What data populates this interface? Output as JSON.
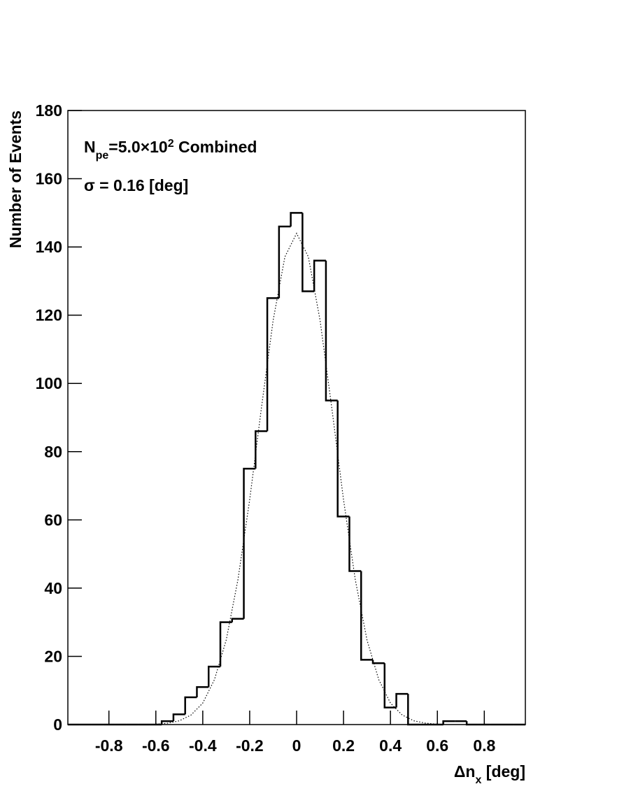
{
  "chart_data": {
    "type": "histogram",
    "ylabel": "Number of Events",
    "xlabel": [
      {
        "text": "Δn"
      },
      {
        "text": "x",
        "sub": true
      },
      {
        "text": "  [deg]"
      }
    ],
    "annotations": [
      [
        {
          "text": "N"
        },
        {
          "text": "pe",
          "sub": true
        },
        {
          "text": "=5.0×10"
        },
        {
          "text": "2",
          "sup": true
        },
        {
          "text": " Combined"
        }
      ],
      [
        {
          "text": "σ = 0.16 [deg]"
        }
      ]
    ],
    "bins": [
      -0.975,
      -0.925,
      -0.875,
      -0.825,
      -0.775,
      -0.725,
      -0.675,
      -0.625,
      -0.575,
      -0.525,
      -0.475,
      -0.425,
      -0.375,
      -0.325,
      -0.275,
      -0.225,
      -0.175,
      -0.125,
      -0.075,
      -0.025,
      0.025,
      0.075,
      0.125,
      0.175,
      0.225,
      0.275,
      0.325,
      0.375,
      0.425,
      0.475,
      0.525,
      0.575,
      0.625,
      0.675,
      0.725,
      0.775,
      0.825,
      0.875,
      0.925,
      0.975
    ],
    "counts": [
      0,
      0,
      0,
      0,
      0,
      0,
      0,
      0,
      1,
      3,
      8,
      11,
      17,
      30,
      31,
      75,
      86,
      125,
      146,
      150,
      127,
      136,
      95,
      61,
      45,
      19,
      18,
      5,
      9,
      0,
      0,
      0,
      1,
      1,
      0,
      0,
      0,
      0,
      0
    ],
    "color": "#000000",
    "fit": {
      "color": "#000000",
      "style": "dotted",
      "x": [
        -0.6,
        -0.55,
        -0.5,
        -0.45,
        -0.4,
        -0.35,
        -0.3,
        -0.25,
        -0.2,
        -0.15,
        -0.1,
        -0.05,
        0,
        0.05,
        0.1,
        0.15,
        0.2,
        0.25,
        0.3,
        0.35,
        0.4,
        0.45,
        0.5,
        0.55,
        0.6
      ],
      "values": [
        0.1,
        0.4,
        1.1,
        2.8,
        6.3,
        13.2,
        24.8,
        42.5,
        65.9,
        92.8,
        118.5,
        137.1,
        144,
        137.1,
        118.5,
        92.8,
        65.9,
        42.5,
        24.8,
        13.2,
        6.3,
        2.8,
        1.1,
        0.4,
        0.1
      ]
    },
    "xlim": [
      -0.975,
      0.975
    ],
    "ylim": [
      0,
      180
    ],
    "xticks": [
      -0.8,
      -0.6,
      -0.4,
      -0.2,
      0,
      0.2,
      0.4,
      0.6,
      0.8
    ],
    "yticks": [
      0,
      20,
      40,
      60,
      80,
      100,
      120,
      140,
      160,
      180
    ]
  }
}
